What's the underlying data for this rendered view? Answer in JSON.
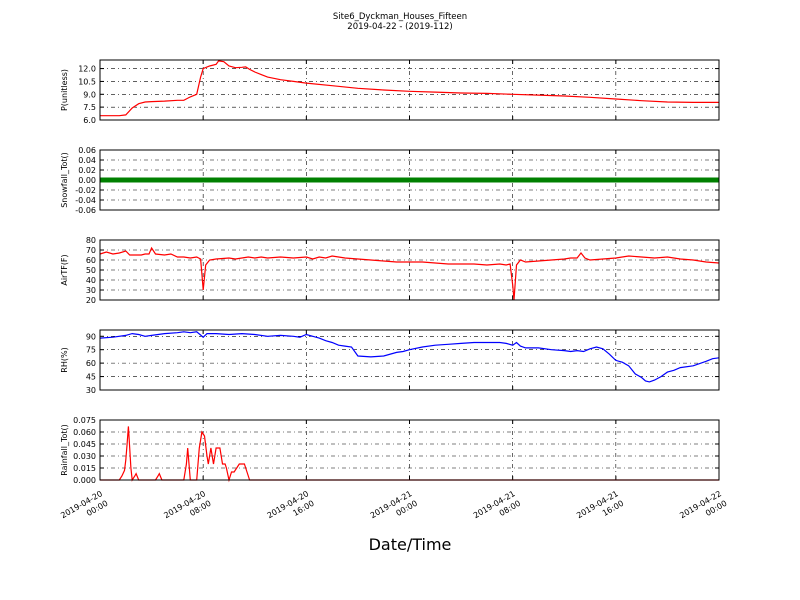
{
  "chart_data": {
    "type": "line",
    "title": "Site6_Dyckman_Houses_Fifteen",
    "subtitle": "2019-04-22 - (2019-112)",
    "xlabel": "Date/Time",
    "x_domain_hours": [
      0,
      48
    ],
    "x_ticks": [
      {
        "hour": 0,
        "lines": [
          "2019-04-20",
          "00:00"
        ]
      },
      {
        "hour": 8,
        "lines": [
          "2019-04-20",
          "08:00"
        ]
      },
      {
        "hour": 16,
        "lines": [
          "2019-04-20",
          "16:00"
        ]
      },
      {
        "hour": 24,
        "lines": [
          "2019-04-21",
          "00:00"
        ]
      },
      {
        "hour": 32,
        "lines": [
          "2019-04-21",
          "08:00"
        ]
      },
      {
        "hour": 40,
        "lines": [
          "2019-04-21",
          "16:00"
        ]
      },
      {
        "hour": 48,
        "lines": [
          "2019-04-22",
          "00:00"
        ]
      }
    ],
    "panels": [
      {
        "ylabel": "P(unitless)",
        "ylim": [
          6.0,
          13.0
        ],
        "yticks": [
          "6.0",
          "7.5",
          "9.0",
          "10.5",
          "12.0"
        ],
        "ytick_values": [
          6.0,
          7.5,
          9.0,
          10.5,
          12.0
        ],
        "color": "#ff0000",
        "markers": false,
        "points": [
          [
            0,
            6.5
          ],
          [
            1.5,
            6.5
          ],
          [
            2,
            6.6
          ],
          [
            2.5,
            7.4
          ],
          [
            3,
            7.9
          ],
          [
            3.5,
            8.1
          ],
          [
            4,
            8.15
          ],
          [
            5,
            8.2
          ],
          [
            6,
            8.3
          ],
          [
            6.5,
            8.3
          ],
          [
            7,
            8.7
          ],
          [
            7.5,
            9.0
          ],
          [
            7.8,
            11.0
          ],
          [
            8,
            12.0
          ],
          [
            8.5,
            12.3
          ],
          [
            9,
            12.5
          ],
          [
            9.2,
            12.9
          ],
          [
            9.6,
            12.8
          ],
          [
            10,
            12.3
          ],
          [
            10.5,
            12.1
          ],
          [
            11,
            12.15
          ],
          [
            11.3,
            12.2
          ],
          [
            11.6,
            11.9
          ],
          [
            12,
            11.6
          ],
          [
            12.5,
            11.3
          ],
          [
            13,
            11.0
          ],
          [
            14,
            10.7
          ],
          [
            15,
            10.5
          ],
          [
            16,
            10.3
          ],
          [
            18,
            10.0
          ],
          [
            20,
            9.7
          ],
          [
            22,
            9.5
          ],
          [
            24,
            9.35
          ],
          [
            26,
            9.25
          ],
          [
            28,
            9.15
          ],
          [
            30,
            9.1
          ],
          [
            32,
            9.0
          ],
          [
            34,
            8.9
          ],
          [
            36,
            8.8
          ],
          [
            38,
            8.65
          ],
          [
            40,
            8.45
          ],
          [
            42,
            8.25
          ],
          [
            44,
            8.1
          ],
          [
            46,
            8.05
          ],
          [
            48,
            8.05
          ]
        ]
      },
      {
        "ylabel": "Snowfall_Tot()",
        "ylim": [
          -0.06,
          0.06
        ],
        "yticks": [
          "-0.06",
          "-0.04",
          "-0.02",
          "0.00",
          "0.02",
          "0.04",
          "0.06"
        ],
        "ytick_values": [
          -0.06,
          -0.04,
          -0.02,
          0.0,
          0.02,
          0.04,
          0.06
        ],
        "color": "#008000",
        "markers": true,
        "points": [
          [
            0,
            0
          ],
          [
            48,
            0
          ]
        ]
      },
      {
        "ylabel": "AirTF(F)",
        "ylim": [
          20,
          80
        ],
        "yticks": [
          "20",
          "30",
          "40",
          "50",
          "60",
          "70",
          "80"
        ],
        "ytick_values": [
          20,
          30,
          40,
          50,
          60,
          70,
          80
        ],
        "color": "#ff0000",
        "markers": false,
        "points": [
          [
            0,
            66
          ],
          [
            0.5,
            68
          ],
          [
            1,
            66
          ],
          [
            1.5,
            67
          ],
          [
            2,
            69
          ],
          [
            2.3,
            65
          ],
          [
            2.8,
            65
          ],
          [
            3.5,
            66
          ],
          [
            3.2,
            65
          ],
          [
            3.8,
            66
          ],
          [
            4,
            72
          ],
          [
            4.3,
            66
          ],
          [
            5,
            65
          ],
          [
            5.5,
            66
          ],
          [
            6,
            63
          ],
          [
            6.5,
            63
          ],
          [
            7,
            62
          ],
          [
            7.5,
            63
          ],
          [
            7.8,
            61
          ],
          [
            7.9,
            46
          ],
          [
            8,
            30
          ],
          [
            8.2,
            55
          ],
          [
            8.5,
            60
          ],
          [
            9,
            61
          ],
          [
            10,
            62
          ],
          [
            10.5,
            61
          ],
          [
            11,
            62
          ],
          [
            11.5,
            63
          ],
          [
            12,
            62
          ],
          [
            12.5,
            63
          ],
          [
            13,
            62
          ],
          [
            14,
            63
          ],
          [
            15,
            62
          ],
          [
            16,
            63
          ],
          [
            16.5,
            61
          ],
          [
            17,
            63
          ],
          [
            17.5,
            62
          ],
          [
            18,
            64
          ],
          [
            18.5,
            63
          ],
          [
            19,
            62
          ],
          [
            20,
            61
          ],
          [
            21,
            60
          ],
          [
            22,
            59
          ],
          [
            23,
            58
          ],
          [
            24,
            58
          ],
          [
            25,
            58
          ],
          [
            26,
            57
          ],
          [
            27,
            56
          ],
          [
            28,
            56
          ],
          [
            29,
            56
          ],
          [
            30,
            55
          ],
          [
            31,
            56
          ],
          [
            31.5,
            55
          ],
          [
            31.8,
            56
          ],
          [
            32,
            35
          ],
          [
            32.1,
            20
          ],
          [
            32.3,
            55
          ],
          [
            32.6,
            60
          ],
          [
            33,
            58
          ],
          [
            34,
            59
          ],
          [
            35,
            60
          ],
          [
            36,
            61
          ],
          [
            36.5,
            62
          ],
          [
            37,
            62
          ],
          [
            37.3,
            67
          ],
          [
            37.6,
            62
          ],
          [
            38,
            60
          ],
          [
            39,
            61
          ],
          [
            40,
            62
          ],
          [
            41,
            64
          ],
          [
            42,
            63
          ],
          [
            43,
            62
          ],
          [
            44,
            63
          ],
          [
            45,
            61
          ],
          [
            46,
            60
          ],
          [
            47,
            58
          ],
          [
            48,
            57
          ]
        ]
      },
      {
        "ylabel": "RH(%)",
        "ylim": [
          30,
          97
        ],
        "yticks": [
          "30",
          "45",
          "60",
          "75",
          "90"
        ],
        "ytick_values": [
          30,
          45,
          60,
          75,
          90
        ],
        "color": "#0000ff",
        "markers": false,
        "points": [
          [
            0,
            88
          ],
          [
            1,
            89
          ],
          [
            2,
            91
          ],
          [
            2.5,
            93
          ],
          [
            3,
            92
          ],
          [
            3.5,
            90
          ],
          [
            4,
            91
          ],
          [
            5,
            93
          ],
          [
            6,
            94
          ],
          [
            6.5,
            95
          ],
          [
            7,
            94
          ],
          [
            7.5,
            95
          ],
          [
            8,
            89
          ],
          [
            8.3,
            93
          ],
          [
            9,
            93
          ],
          [
            10,
            92
          ],
          [
            11,
            93
          ],
          [
            12,
            92
          ],
          [
            13,
            90
          ],
          [
            14,
            91
          ],
          [
            15,
            90
          ],
          [
            15.5,
            89
          ],
          [
            16,
            92
          ],
          [
            16.5,
            90
          ],
          [
            17,
            88
          ],
          [
            17.5,
            85
          ],
          [
            18,
            83
          ],
          [
            18.5,
            80
          ],
          [
            19,
            79
          ],
          [
            19.5,
            78
          ],
          [
            20,
            68
          ],
          [
            21,
            67
          ],
          [
            22,
            68
          ],
          [
            23,
            72
          ],
          [
            23.5,
            73
          ],
          [
            24,
            75
          ],
          [
            25,
            78
          ],
          [
            26,
            80
          ],
          [
            27,
            81
          ],
          [
            28,
            82
          ],
          [
            29,
            83
          ],
          [
            30,
            83
          ],
          [
            31,
            83
          ],
          [
            31.5,
            82
          ],
          [
            32,
            80
          ],
          [
            32.3,
            83
          ],
          [
            32.6,
            79
          ],
          [
            33,
            77
          ],
          [
            34,
            77
          ],
          [
            35,
            75
          ],
          [
            36,
            74
          ],
          [
            36.5,
            73
          ],
          [
            37,
            74
          ],
          [
            37.5,
            73
          ],
          [
            38,
            76
          ],
          [
            38.5,
            78
          ],
          [
            39,
            76
          ],
          [
            39.5,
            70
          ],
          [
            40,
            63
          ],
          [
            40.5,
            61
          ],
          [
            41,
            57
          ],
          [
            41.5,
            48
          ],
          [
            42,
            44
          ],
          [
            42.3,
            40
          ],
          [
            42.6,
            39
          ],
          [
            43,
            41
          ],
          [
            43.5,
            45
          ],
          [
            44,
            50
          ],
          [
            44.5,
            52
          ],
          [
            45,
            55
          ],
          [
            46,
            57
          ],
          [
            47,
            62
          ],
          [
            47.5,
            65
          ],
          [
            48,
            66
          ]
        ]
      },
      {
        "ylabel": "Rainfall_Tot()",
        "ylim": [
          0.0,
          0.075
        ],
        "yticks": [
          "0.000",
          "0.015",
          "0.030",
          "0.045",
          "0.060",
          "0.075"
        ],
        "ytick_values": [
          0.0,
          0.015,
          0.03,
          0.045,
          0.06,
          0.075
        ],
        "color": "#ff0000",
        "markers": false,
        "points": [
          [
            0,
            0
          ],
          [
            1.5,
            0
          ],
          [
            1.7,
            0.005
          ],
          [
            1.9,
            0.012
          ],
          [
            2.0,
            0.025
          ],
          [
            2.1,
            0.045
          ],
          [
            2.2,
            0.067
          ],
          [
            2.3,
            0.04
          ],
          [
            2.4,
            0.015
          ],
          [
            2.5,
            0
          ],
          [
            2.7,
            0.005
          ],
          [
            2.8,
            0.008
          ],
          [
            3.0,
            0
          ],
          [
            4.3,
            0
          ],
          [
            4.5,
            0.005
          ],
          [
            4.6,
            0.008
          ],
          [
            4.8,
            0
          ],
          [
            6.5,
            0
          ],
          [
            6.7,
            0.02
          ],
          [
            6.8,
            0.04
          ],
          [
            6.9,
            0.02
          ],
          [
            7.0,
            0
          ],
          [
            7.5,
            0
          ],
          [
            7.6,
            0.02
          ],
          [
            7.7,
            0.04
          ],
          [
            7.8,
            0.05
          ],
          [
            7.9,
            0.06
          ],
          [
            8.1,
            0.055
          ],
          [
            8.3,
            0.03
          ],
          [
            8.4,
            0.02
          ],
          [
            8.5,
            0.03
          ],
          [
            8.6,
            0.04
          ],
          [
            8.7,
            0.03
          ],
          [
            8.8,
            0.02
          ],
          [
            8.9,
            0.03
          ],
          [
            9.0,
            0.04
          ],
          [
            9.1,
            0.04
          ],
          [
            9.3,
            0.04
          ],
          [
            9.5,
            0.02
          ],
          [
            9.7,
            0.02
          ],
          [
            9.8,
            0.015
          ],
          [
            10.0,
            0
          ],
          [
            10.2,
            0.01
          ],
          [
            10.4,
            0.01
          ],
          [
            10.6,
            0.015
          ],
          [
            10.8,
            0.02
          ],
          [
            11.0,
            0.02
          ],
          [
            11.2,
            0.02
          ],
          [
            11.4,
            0.01
          ],
          [
            11.6,
            0
          ],
          [
            48,
            0
          ]
        ]
      }
    ]
  }
}
